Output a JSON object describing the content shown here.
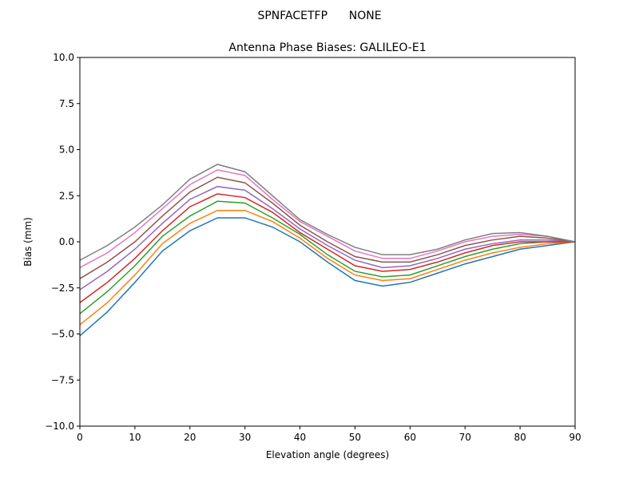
{
  "chart_data": {
    "type": "line",
    "suptitle": "SPNFACETFP      NONE",
    "title": "Antenna Phase Biases: GALILEO-E1",
    "xlabel": "Elevation angle (degrees)",
    "ylabel": "Bias (mm)",
    "xlim": [
      0,
      90
    ],
    "ylim": [
      -10,
      10
    ],
    "xticks": [
      0,
      10,
      20,
      30,
      40,
      50,
      60,
      70,
      80,
      90
    ],
    "yticks": [
      -10.0,
      -7.5,
      -5.0,
      -2.5,
      0.0,
      2.5,
      5.0,
      7.5,
      10.0
    ],
    "ytick_labels": [
      "−10.0",
      "−7.5",
      "−5.0",
      "−2.5",
      "0.0",
      "2.5",
      "5.0",
      "7.5",
      "10.0"
    ],
    "grid": false,
    "legend": "none",
    "colors": [
      "#1f77b4",
      "#ff7f0e",
      "#2ca02c",
      "#d62728",
      "#9467bd",
      "#8c564b",
      "#e377c2",
      "#7f7f7f",
      "#bcbd22",
      "#17becf"
    ],
    "x": [
      0,
      5,
      10,
      15,
      20,
      25,
      30,
      35,
      40,
      45,
      50,
      55,
      60,
      65,
      70,
      75,
      80,
      85,
      90
    ],
    "series": [
      {
        "values": [
          -5.1,
          -3.8,
          -2.2,
          -0.5,
          0.6,
          1.3,
          1.3,
          0.8,
          0.0,
          -1.1,
          -2.1,
          -2.4,
          -2.2,
          -1.7,
          -1.2,
          -0.8,
          -0.4,
          -0.2,
          0
        ]
      },
      {
        "values": [
          -4.5,
          -3.3,
          -1.8,
          -0.1,
          1.0,
          1.7,
          1.7,
          1.1,
          0.2,
          -0.9,
          -1.8,
          -2.1,
          -2.0,
          -1.5,
          -1.0,
          -0.6,
          -0.3,
          -0.1,
          0
        ]
      },
      {
        "values": [
          -3.9,
          -2.7,
          -1.3,
          0.3,
          1.4,
          2.2,
          2.1,
          1.3,
          0.4,
          -0.7,
          -1.6,
          -1.9,
          -1.8,
          -1.3,
          -0.8,
          -0.4,
          -0.1,
          0.0,
          0
        ]
      },
      {
        "values": [
          -3.3,
          -2.2,
          -0.9,
          0.6,
          1.9,
          2.6,
          2.4,
          1.6,
          0.5,
          -0.4,
          -1.3,
          -1.6,
          -1.5,
          -1.1,
          -0.6,
          -0.2,
          0.0,
          0.0,
          0
        ]
      },
      {
        "values": [
          -2.6,
          -1.6,
          -0.4,
          1.0,
          2.3,
          3.0,
          2.8,
          1.8,
          0.7,
          -0.2,
          -1.0,
          -1.4,
          -1.3,
          -0.9,
          -0.4,
          -0.1,
          0.1,
          0.1,
          0
        ]
      },
      {
        "values": [
          -2.0,
          -1.1,
          0.0,
          1.4,
          2.7,
          3.5,
          3.2,
          2.1,
          0.9,
          0.0,
          -0.8,
          -1.1,
          -1.1,
          -0.7,
          -0.2,
          0.1,
          0.3,
          0.2,
          0
        ]
      },
      {
        "values": [
          -1.4,
          -0.6,
          0.5,
          1.8,
          3.1,
          3.9,
          3.6,
          2.3,
          1.1,
          0.3,
          -0.5,
          -0.9,
          -0.9,
          -0.5,
          0.0,
          0.3,
          0.4,
          0.3,
          0
        ]
      },
      {
        "values": [
          -1.0,
          -0.2,
          0.8,
          2.0,
          3.4,
          4.2,
          3.8,
          2.5,
          1.2,
          0.4,
          -0.3,
          -0.7,
          -0.7,
          -0.4,
          0.1,
          0.45,
          0.5,
          0.3,
          0
        ]
      }
    ]
  }
}
